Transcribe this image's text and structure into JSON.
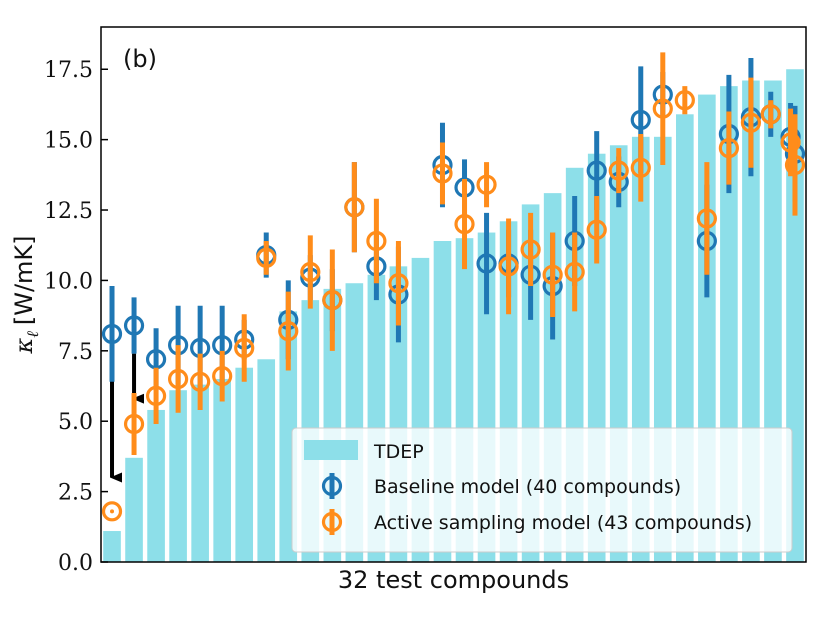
{
  "chart_data": {
    "type": "bar",
    "panel_label": "(b)",
    "xlabel": "32 test compounds",
    "ylabel_symbol": "κ",
    "ylabel_subscript": "ℓ",
    "ylabel_unit": "[W/mK]",
    "ylim": [
      0,
      19
    ],
    "yticks": [
      0.0,
      2.5,
      5.0,
      7.5,
      10.0,
      12.5,
      15.0,
      17.5
    ],
    "ytick_labels": [
      "0.0",
      "2.5",
      "5.0",
      "7.5",
      "10.0",
      "12.5",
      "15.0",
      "17.5"
    ],
    "n_compounds": 32,
    "colors": {
      "bar": "#8ddfe9",
      "baseline": "#1f77b4",
      "active": "#ff8c1a",
      "arrow": "#000000"
    },
    "legend": {
      "placement": "bottom-right",
      "entries": [
        "TDEP",
        "Baseline model (40 compounds)",
        "Active sampling model (43 compounds)"
      ]
    },
    "series": [
      {
        "name": "TDEP",
        "kind": "bar",
        "values": [
          1.1,
          3.7,
          5.4,
          6.1,
          6.3,
          6.5,
          6.9,
          7.2,
          8.9,
          9.3,
          9.7,
          9.9,
          10.2,
          10.5,
          10.8,
          11.4,
          11.5,
          11.7,
          12.1,
          12.7,
          13.1,
          14.0,
          14.5,
          14.8,
          15.1,
          15.1,
          15.9,
          16.6,
          16.9,
          17.1,
          17.1,
          17.5
        ]
      },
      {
        "name": "Baseline model (40 compounds)",
        "kind": "errorbar",
        "values": [
          8.1,
          8.4,
          7.2,
          7.7,
          7.6,
          7.7,
          7.9,
          10.9,
          8.6,
          10.1,
          9.3,
          12.6,
          10.5,
          9.5,
          14.1,
          13.3,
          10.6,
          10.6,
          10.2,
          9.8,
          11.4,
          13.9,
          13.5,
          15.7,
          16.6,
          11.4,
          15.2,
          15.8,
          15.9,
          15.1,
          14.5
        ],
        "errors": [
          1.7,
          1.0,
          1.1,
          1.4,
          1.5,
          1.4,
          0.7,
          0.8,
          1.4,
          0.8,
          1.1,
          1.6,
          1.2,
          1.7,
          1.5,
          1.0,
          1.8,
          1.2,
          1.6,
          1.9,
          1.6,
          1.4,
          0.9,
          1.9,
          0.8,
          2.0,
          2.1,
          2.1,
          0.8,
          1.2,
          1.7
        ]
      },
      {
        "name": "Active sampling model (43 compounds)",
        "kind": "errorbar",
        "values": [
          1.8,
          4.9,
          5.9,
          6.5,
          6.4,
          6.6,
          7.6,
          10.8,
          8.2,
          10.3,
          9.3,
          12.6,
          11.4,
          9.9,
          13.8,
          12.0,
          13.4,
          10.5,
          11.1,
          10.2,
          10.3,
          11.8,
          13.9,
          14.0,
          16.1,
          16.4,
          12.2,
          14.7,
          15.6,
          15.9,
          14.9,
          14.1
        ],
        "errors": [
          0.0,
          1.1,
          1.0,
          1.2,
          1.0,
          0.9,
          1.2,
          0.6,
          1.4,
          1.3,
          1.8,
          1.6,
          1.5,
          1.5,
          1.1,
          1.6,
          0.8,
          1.7,
          1.3,
          1.5,
          1.4,
          1.2,
          0.8,
          1.2,
          2.0,
          0.5,
          2.0,
          1.3,
          1.6,
          0.5,
          1.2,
          1.8
        ]
      }
    ],
    "baseline_index": [
      0,
      1,
      2,
      3,
      4,
      5,
      6,
      7,
      8,
      9,
      10,
      11,
      12,
      13,
      15,
      16,
      17,
      18,
      19,
      20,
      21,
      22,
      23,
      24,
      25,
      27,
      28,
      29,
      29.9,
      30.8,
      31
    ],
    "active_index": [
      0,
      1,
      2,
      3,
      4,
      5,
      6,
      7,
      8,
      9,
      10,
      11,
      12,
      13,
      15,
      16,
      17,
      18,
      19,
      20,
      21,
      22,
      23,
      24,
      25,
      26,
      27,
      28,
      29,
      29.9,
      30.8,
      31
    ],
    "annotations": [
      {
        "type": "arrow",
        "compound_index": 0,
        "from_value": 6.5,
        "to_value": 3.0
      },
      {
        "type": "arrow",
        "compound_index": 1,
        "from_value": 7.4,
        "to_value": 5.8
      }
    ]
  }
}
